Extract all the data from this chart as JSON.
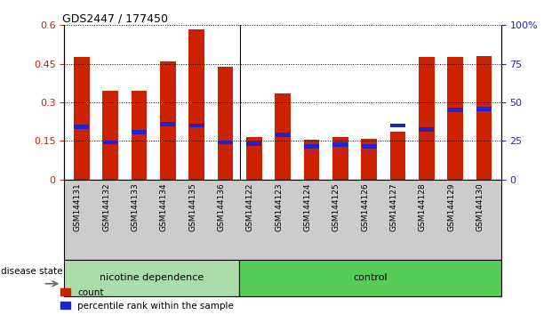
{
  "title": "GDS2447 / 177450",
  "categories": [
    "GSM144131",
    "GSM144132",
    "GSM144133",
    "GSM144134",
    "GSM144135",
    "GSM144136",
    "GSM144122",
    "GSM144123",
    "GSM144124",
    "GSM144125",
    "GSM144126",
    "GSM144127",
    "GSM144128",
    "GSM144129",
    "GSM144130"
  ],
  "bar_values": [
    0.475,
    0.345,
    0.345,
    0.46,
    0.585,
    0.44,
    0.165,
    0.335,
    0.155,
    0.165,
    0.16,
    0.185,
    0.475,
    0.475,
    0.48
  ],
  "blue_markers": [
    0.205,
    0.145,
    0.185,
    0.215,
    0.21,
    0.145,
    0.14,
    0.175,
    0.13,
    0.135,
    0.13,
    0.21,
    0.195,
    0.27,
    0.275
  ],
  "bar_color": "#cc2200",
  "blue_color": "#2222cc",
  "group1_label": "nicotine dependence",
  "group2_label": "control",
  "group1_count": 6,
  "group2_count": 9,
  "group1_color": "#bbeeaa",
  "group2_color": "#66cc44",
  "disease_state_label": "disease state",
  "ylim_left": [
    0,
    0.6
  ],
  "ylim_right": [
    0,
    100
  ],
  "yticks_left": [
    0,
    0.15,
    0.3,
    0.45,
    0.6
  ],
  "yticks_right": [
    0,
    25,
    50,
    75,
    100
  ],
  "ytick_labels_left": [
    "0",
    "0.15",
    "0.3",
    "0.45",
    "0.6"
  ],
  "ytick_labels_right": [
    "0",
    "25",
    "50",
    "75",
    "100%"
  ],
  "legend_count_label": "count",
  "legend_pct_label": "percentile rank within the sample",
  "bar_width": 0.55,
  "grid_color": "#000000",
  "tick_label_color_left": "#cc2200",
  "tick_label_color_right": "#2222cc",
  "xtick_bg_color": "#cccccc",
  "group_box_color1": "#aaddaa",
  "group_box_color2": "#55cc55"
}
